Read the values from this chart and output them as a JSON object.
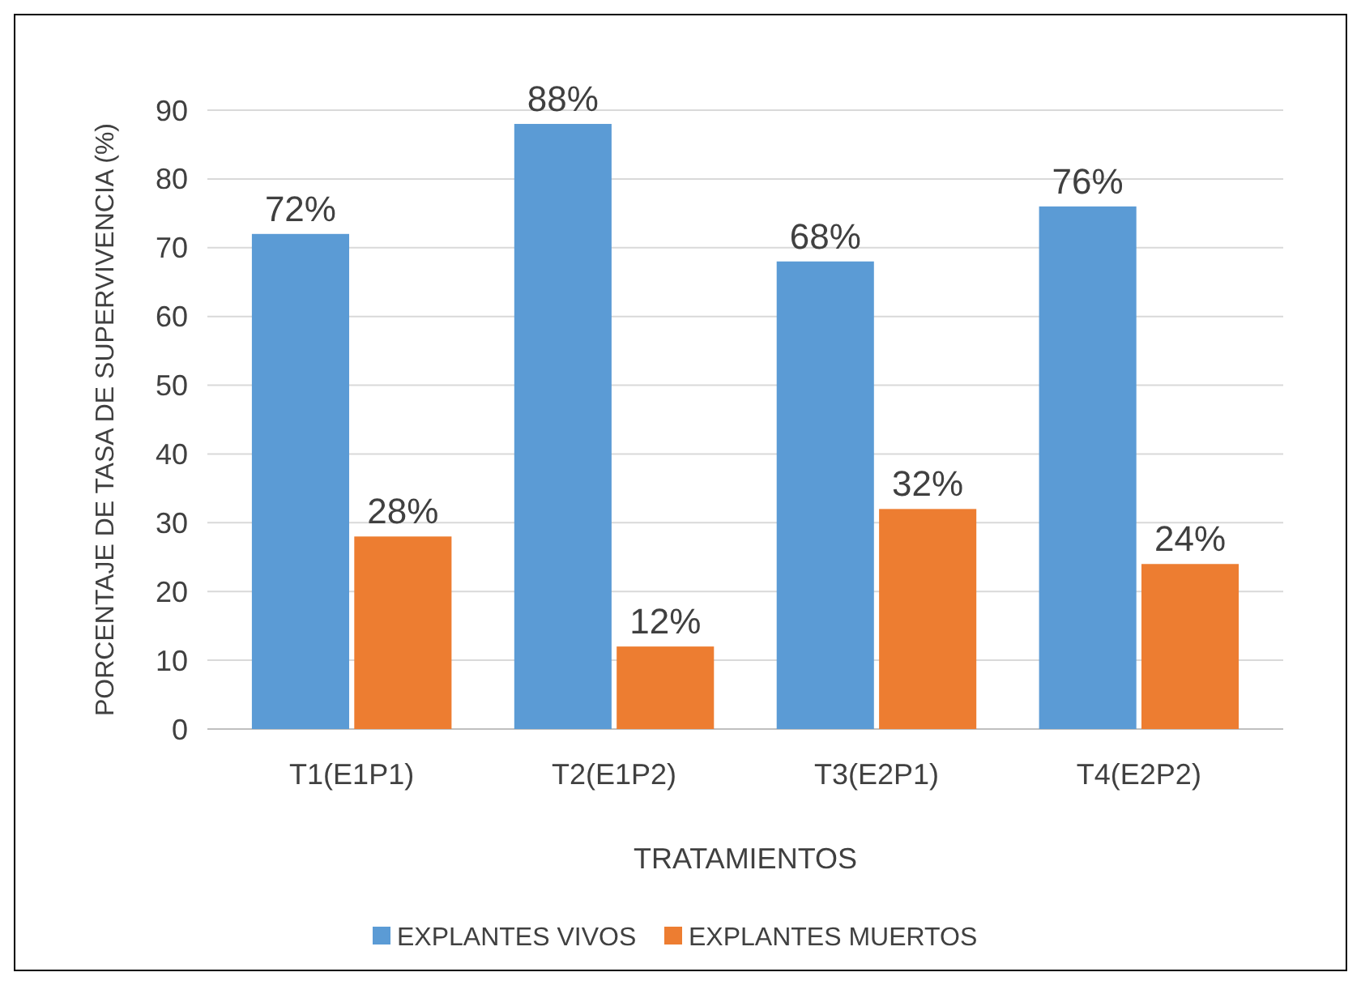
{
  "chart_data": {
    "type": "bar",
    "xlabel": "TRATAMIENTOS",
    "ylabel": "PORCENTAJE DE TASA DE SUPERVIVENCIA (%)",
    "categories": [
      "T1(E1P1)",
      "T2(E1P2)",
      "T3(E2P1)",
      "T4(E2P2)"
    ],
    "series": [
      {
        "name": "EXPLANTES VIVOS",
        "color": "#5b9bd5",
        "values": [
          72,
          88,
          68,
          76
        ],
        "value_labels": [
          "72%",
          "88%",
          "68%",
          "76%"
        ]
      },
      {
        "name": "EXPLANTES MUERTOS",
        "color": "#ed7d31",
        "values": [
          28,
          12,
          32,
          24
        ],
        "value_labels": [
          "28%",
          "12%",
          "32%",
          "24%"
        ]
      }
    ],
    "ylim": [
      0,
      90
    ],
    "yticks": [
      0,
      10,
      20,
      30,
      40,
      50,
      60,
      70,
      80,
      90
    ],
    "grid": "y",
    "legend": "bottom"
  }
}
